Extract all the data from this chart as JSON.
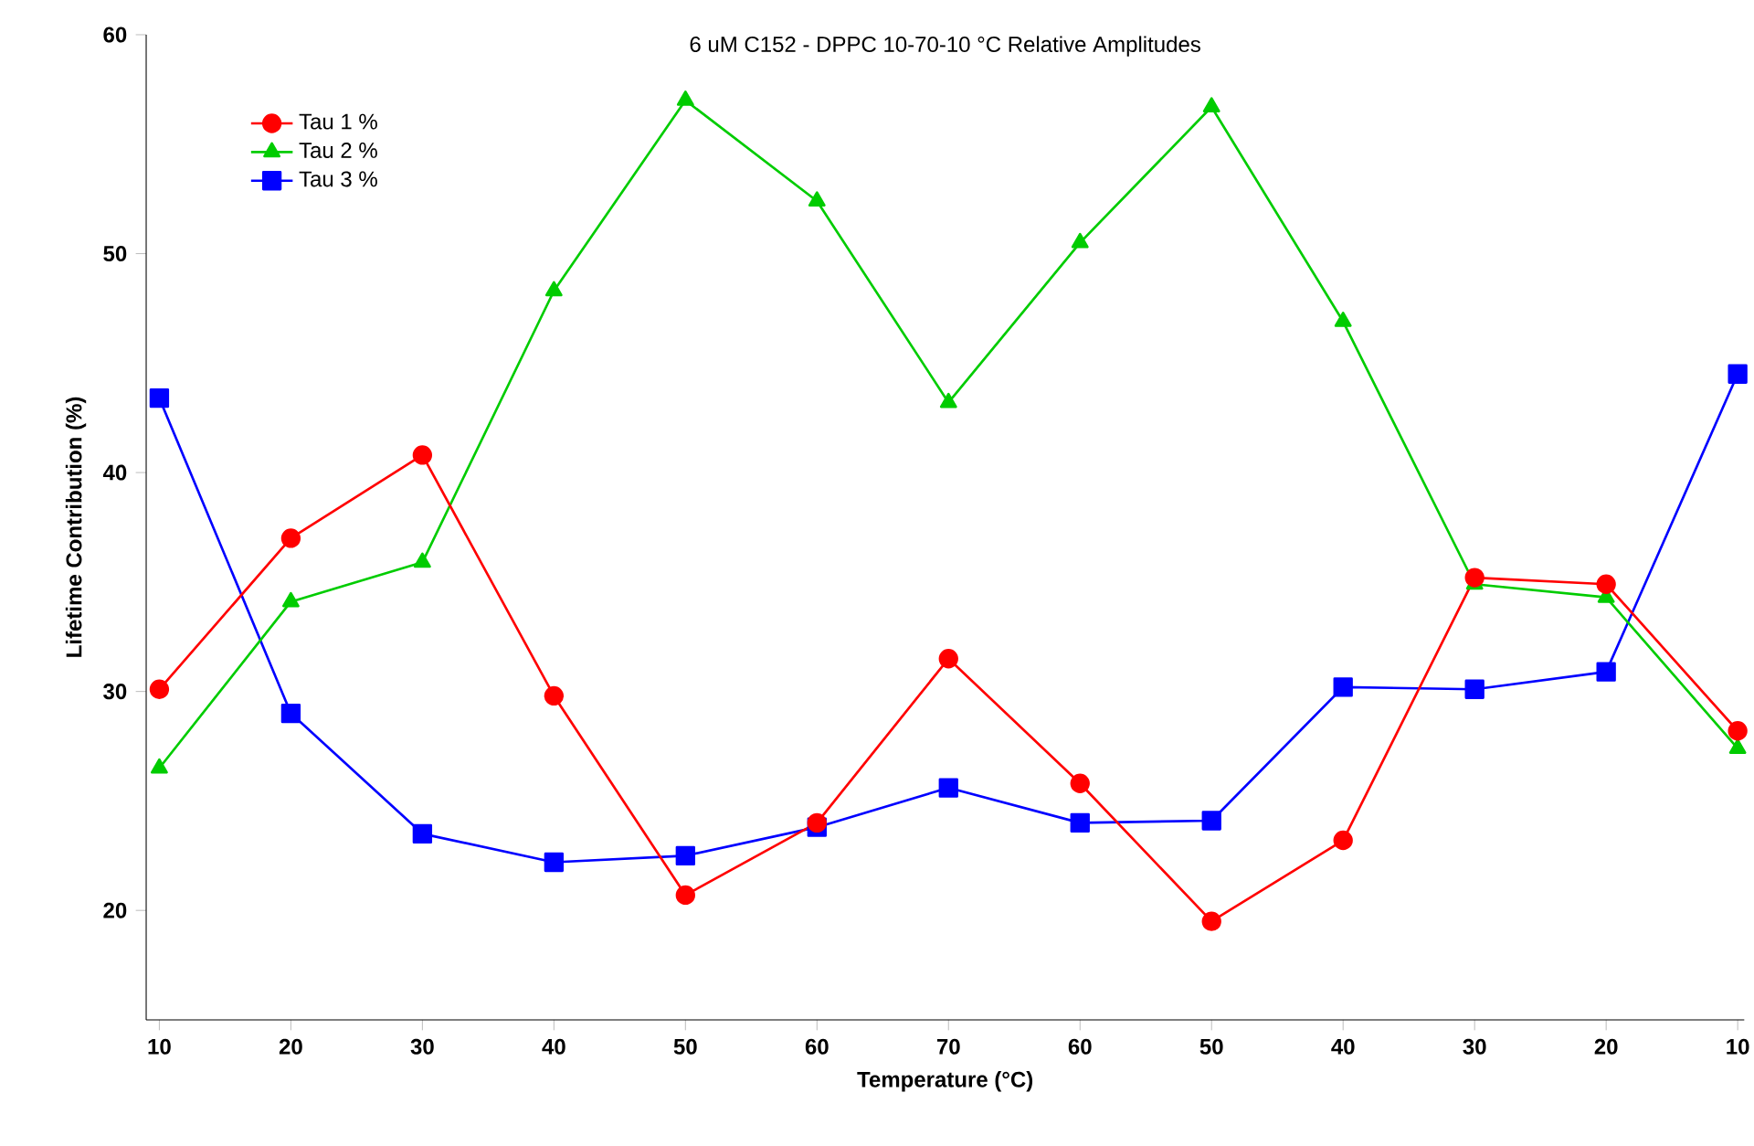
{
  "chart_data": {
    "type": "line",
    "title": "6 uM C152 - DPPC 10-70-10 °C Relative Amplitudes",
    "xlabel": "Temperature (°C)",
    "ylabel": "Lifetime Contribution (%)",
    "categories": [
      "10",
      "20",
      "30",
      "40",
      "50",
      "60",
      "70",
      "60",
      "50",
      "40",
      "30",
      "20",
      "10"
    ],
    "ylim": [
      15,
      60
    ],
    "yticks": [
      20,
      30,
      40,
      50,
      60
    ],
    "grid": false,
    "legend": "top left",
    "line_style": "solid",
    "series": [
      {
        "name": "Tau 1 %",
        "color": "#ff0000",
        "marker": "circle",
        "values": [
          30.1,
          37.0,
          40.8,
          29.8,
          20.7,
          24.0,
          31.5,
          25.8,
          19.5,
          23.2,
          35.2,
          34.9,
          28.2
        ]
      },
      {
        "name": "Tau 2 %",
        "color": "#00cc00",
        "marker": "triangle",
        "values": [
          26.5,
          34.1,
          35.9,
          48.3,
          57.0,
          52.4,
          43.2,
          50.5,
          56.7,
          46.9,
          34.9,
          34.3,
          27.4
        ]
      },
      {
        "name": "Tau 3 %",
        "color": "#0000ff",
        "marker": "square",
        "values": [
          43.4,
          29.0,
          23.5,
          22.2,
          22.5,
          23.8,
          25.6,
          24.0,
          24.1,
          30.2,
          30.1,
          30.9,
          44.5
        ]
      }
    ]
  }
}
